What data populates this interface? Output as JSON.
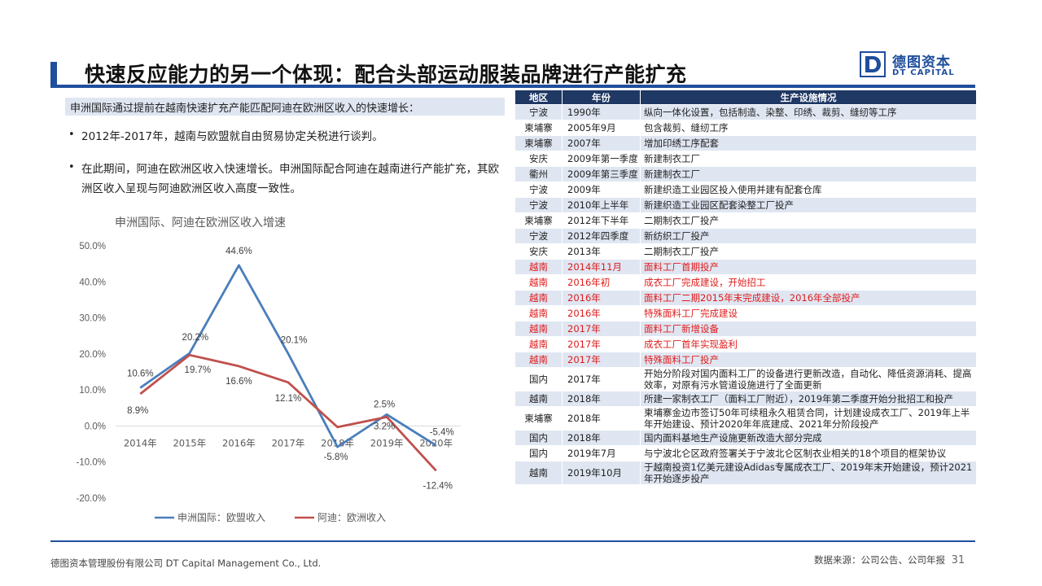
{
  "title": "快速反应能力的另一个体现：配合头部运动服装品牌进行产能扩充",
  "logo": {
    "cn": "德图资本",
    "en": "DT CAPITAL"
  },
  "intro": "申洲国际通过提前在越南快速扩充产能匹配阿迪在欧洲区收入的快速增长：",
  "bullets": [
    {
      "mark": "•",
      "text": "2012年-2017年，越南与欧盟就自由贸易协定关税进行谈判。"
    },
    {
      "mark": "•",
      "text": "在此期间，阿迪在欧洲区收入快速增长。申洲国际配合阿迪在越南进行产能扩充，其欧洲区收入呈现与阿迪欧洲区收入高度一致性。"
    }
  ],
  "chart_data": {
    "type": "line",
    "title": "申洲国际、阿迪在欧洲区收入增速",
    "categories": [
      "2014年",
      "2015年",
      "2016年",
      "2017年",
      "2018年",
      "2019年",
      "2020年"
    ],
    "yticks": [
      "50.0%",
      "40.0%",
      "30.0%",
      "20.0%",
      "10.0%",
      "0.0%",
      "-10.0%",
      "-20.0%"
    ],
    "ylim": [
      -20,
      50
    ],
    "series": [
      {
        "name": "申洲国际：欧盟收入",
        "color": "#4a7ebb",
        "values": [
          10.6,
          20.2,
          44.6,
          20.1,
          -5.8,
          3.2,
          -5.4
        ],
        "labels": [
          "10.6%",
          "20.2%",
          "44.6%",
          "20.1%",
          "-5.8%",
          "3.2%",
          "-5.4%"
        ]
      },
      {
        "name": "阿迪：欧洲收入",
        "color": "#c0504d",
        "values": [
          8.9,
          19.7,
          16.6,
          12.1,
          -0.3,
          2.5,
          -12.4
        ],
        "labels": [
          "8.9%",
          "19.7%",
          "16.6%",
          "12.1%",
          "",
          "2.5%",
          "-12.4%"
        ]
      }
    ],
    "legend": "bottom"
  },
  "table": {
    "headers": [
      "地区",
      "年份",
      "生产设施情况"
    ],
    "rows": [
      {
        "region": "宁波",
        "year": "1990年",
        "desc": "纵向一体化设置，包括制造、染整、印绣、裁剪、缝纫等工序",
        "red": false
      },
      {
        "region": "柬埔寨",
        "year": "2005年9月",
        "desc": "包含裁剪、缝纫工序",
        "red": false
      },
      {
        "region": "柬埔寨",
        "year": "2007年",
        "desc": "增加印绣工序配套",
        "red": false
      },
      {
        "region": "安庆",
        "year": "2009年第一季度",
        "desc": "新建制衣工厂",
        "red": false
      },
      {
        "region": "衢州",
        "year": "2009年第三季度",
        "desc": "新建制衣工厂",
        "red": false
      },
      {
        "region": "宁波",
        "year": "2009年",
        "desc": "新建织造工业园区投入使用并建有配套仓库",
        "red": false
      },
      {
        "region": "宁波",
        "year": "2010年上半年",
        "desc": "新建织造工业园区配套染整工厂投产",
        "red": false
      },
      {
        "region": "柬埔寨",
        "year": "2012年下半年",
        "desc": "二期制衣工厂投产",
        "red": false
      },
      {
        "region": "宁波",
        "year": "2012年四季度",
        "desc": "新纺织工厂投产",
        "red": false
      },
      {
        "region": "安庆",
        "year": "2013年",
        "desc": "二期制衣工厂投产",
        "red": false
      },
      {
        "region": "越南",
        "year": "2014年11月",
        "desc": "面料工厂首期投产",
        "red": true
      },
      {
        "region": "越南",
        "year": "2016年初",
        "desc": "成衣工厂完成建设，开始招工",
        "red": true
      },
      {
        "region": "越南",
        "year": "2016年",
        "desc": "面料工厂二期2015年末完成建设，2016年全部投产",
        "red": true
      },
      {
        "region": "越南",
        "year": "2016年",
        "desc": "特殊面料工厂完成建设",
        "red": true
      },
      {
        "region": "越南",
        "year": "2017年",
        "desc": "面料工厂新增设备",
        "red": true
      },
      {
        "region": "越南",
        "year": "2017年",
        "desc": "成衣工厂首年实现盈利",
        "red": true
      },
      {
        "region": "越南",
        "year": "2017年",
        "desc": "特殊面料工厂投产",
        "red": true
      },
      {
        "region": "国内",
        "year": "2017年",
        "desc": "开始分阶段对国内面料工厂的设备进行更新改造，自动化、降低资源消耗、提高效率，对原有污水管道设施进行了全面更新",
        "red": false
      },
      {
        "region": "越南",
        "year": "2018年",
        "desc": "所建一家制衣工厂（面料工厂附近），2019年第二季度开始分批招工和投产",
        "red": false
      },
      {
        "region": "柬埔寨",
        "year": "2018年",
        "desc": "柬埔寨金边市签订50年可续租永久租赁合同，计划建设成衣工厂、2019年上半年开始建设、预计2020年年底建成、2021年分阶段投产",
        "red": false
      },
      {
        "region": "国内",
        "year": "2018年",
        "desc": "国内面料基地生产设施更新改造大部分完成",
        "red": false
      },
      {
        "region": "国内",
        "year": "2019年7月",
        "desc": "与宁波北仑区政府签署关于宁波北仑区制衣业相关的18个项目的框架协议",
        "red": false
      },
      {
        "region": "越南",
        "year": "2019年10月",
        "desc": "于越南投资1亿美元建设Adidas专属成衣工厂、2019年末开始建设，预计2021年开始逐步投产",
        "red": false
      }
    ]
  },
  "footer": {
    "company": "德图资本管理股份有限公司 DT Capital Management Co., Ltd.",
    "source": "数据来源：公司公告、公司年报",
    "page": "31"
  },
  "colors": {
    "brand": "#1f4e9c",
    "header_bg": "#1f3864",
    "stripe": "#dfe6f2",
    "red_text": "#e01b1b"
  }
}
